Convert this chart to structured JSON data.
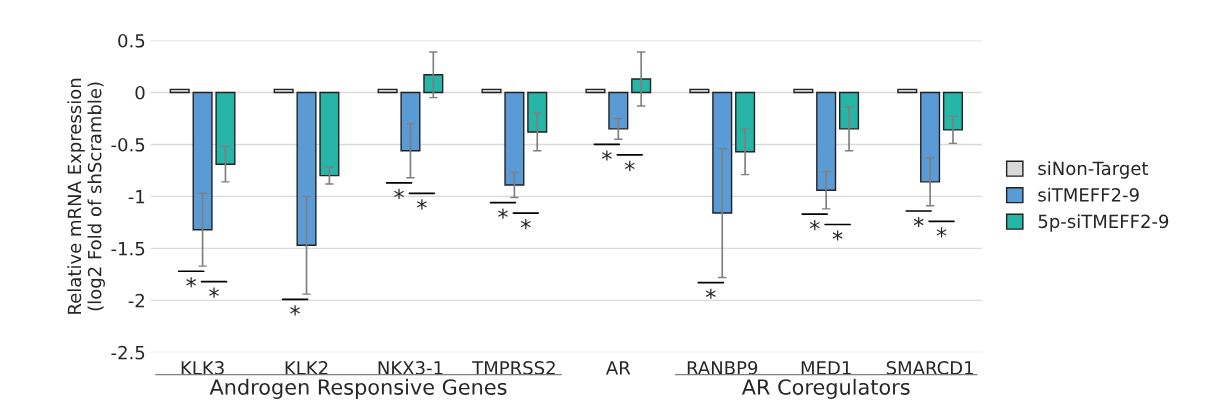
{
  "chart_data": {
    "type": "bar",
    "ylabel": "Relative mRNA Expression\n(log2 Fold of shScramble)",
    "categories": [
      "KLK3",
      "KLK2",
      "NKX3-1",
      "TMPRSS2",
      "AR",
      "RANBP9",
      "MED1",
      "SMARCD1"
    ],
    "series": [
      {
        "name": "siNon-Target",
        "color": "#d9d9d9",
        "values": [
          0.03,
          0.03,
          0.03,
          0.03,
          0.03,
          0.03,
          0.03,
          0.03
        ]
      },
      {
        "name": "siTMEFF2-9",
        "color": "#5b9bd5",
        "values": [
          -1.32,
          -1.47,
          -0.56,
          -0.89,
          -0.35,
          -1.16,
          -0.94,
          -0.86
        ],
        "errors": [
          0.35,
          0.47,
          0.26,
          0.12,
          0.1,
          0.62,
          0.18,
          0.23
        ]
      },
      {
        "name": "5p-siTMEFF2-9",
        "color": "#26b5a6",
        "values": [
          -0.69,
          -0.8,
          0.17,
          -0.38,
          0.13,
          -0.57,
          -0.35,
          -0.36
        ],
        "errors": [
          0.17,
          0.08,
          0.22,
          0.18,
          0.26,
          0.22,
          0.21,
          0.13
        ]
      }
    ],
    "ylim": [
      -2.5,
      0.5
    ],
    "yticks": [
      0.5,
      0,
      -0.5,
      -1,
      -1.5,
      -2,
      -2.5
    ],
    "grid": "y",
    "legend": "right",
    "annotations": [
      "*",
      "*",
      "*",
      "*",
      "*",
      "*",
      "*",
      "*",
      "*",
      "*",
      "*",
      "*",
      "*",
      "*",
      "Androgen Responsive Genes",
      "AR Coregulators"
    ]
  }
}
